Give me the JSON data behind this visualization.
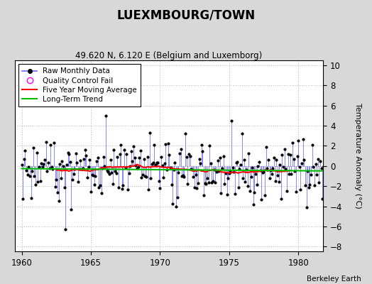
{
  "title": "LUEXMBOURG/TOWN",
  "subtitle": "49.620 N, 6.120 E (Belgium and Luxemborg)",
  "attribution": "Berkeley Earth",
  "ylabel": "Temperature Anomaly (°C)",
  "xlim": [
    1959.5,
    1981.8
  ],
  "ylim": [
    -8.5,
    10.5
  ],
  "yticks": [
    -8,
    -6,
    -4,
    -2,
    0,
    2,
    4,
    6,
    8,
    10
  ],
  "xticks": [
    1960,
    1965,
    1970,
    1975,
    1980
  ],
  "fig_bg_color": "#d8d8d8",
  "plot_bg_color": "#ffffff",
  "raw_line_color": "#6666ff",
  "raw_dot_color": "#000000",
  "ma_color": "#ff0000",
  "trend_color": "#00bb00",
  "qc_color": "#ff00ff",
  "seed": 17,
  "start_year": 1960.0,
  "months_per_year": 12,
  "n_years": 22
}
